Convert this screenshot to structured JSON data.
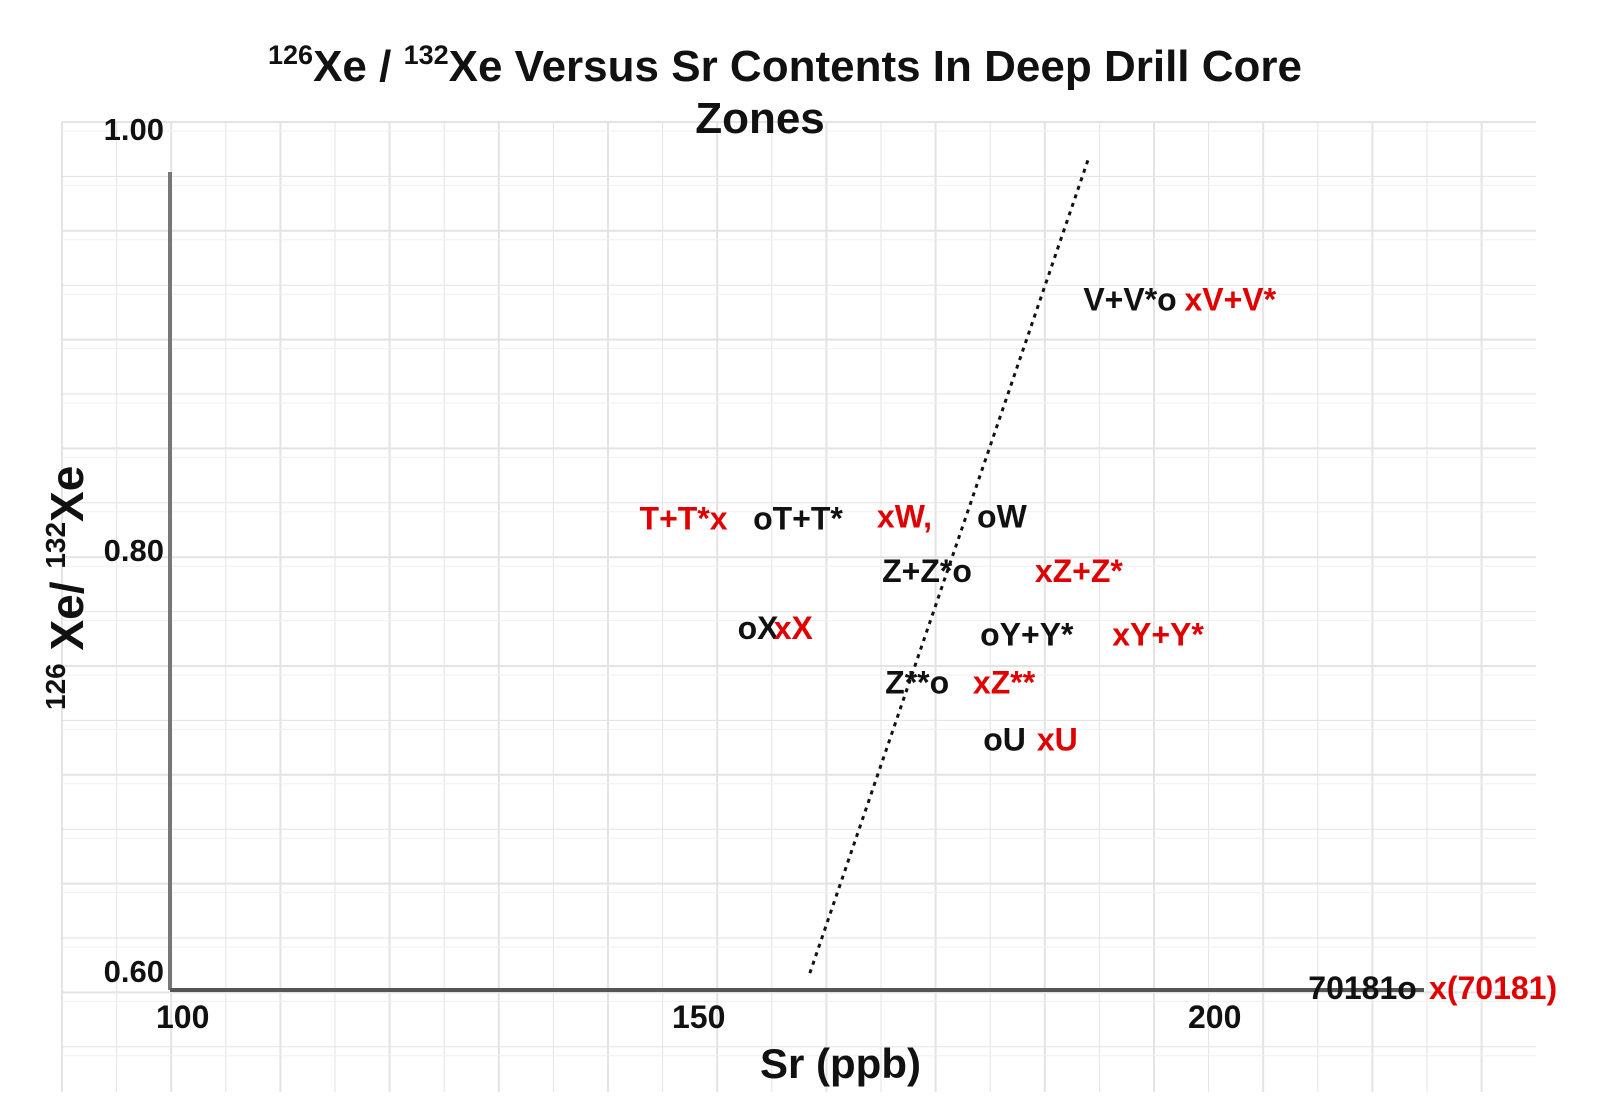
{
  "chart_data": {
    "type": "scatter",
    "title": {
      "line1_sup1": "126",
      "line1_a": "Xe / ",
      "line1_sup2": "132",
      "line1_b": "Xe Versus Sr Contents In Deep Drill Core",
      "line2": "Zones"
    },
    "ylabel": {
      "sup1": "126",
      "a": " Xe/ ",
      "sup2": "132",
      "b": "Xe"
    },
    "xlabel": "Sr (ppb)",
    "xlim": [
      100,
      222
    ],
    "ylim": [
      0.6,
      1.0
    ],
    "x_ticks": [
      {
        "value": 100,
        "label": "100"
      },
      {
        "value": 150,
        "label": "150"
      },
      {
        "value": 200,
        "label": "200"
      }
    ],
    "y_ticks": [
      {
        "value": 0.6,
        "label": "0.60"
      },
      {
        "value": 0.8,
        "label": "0.80"
      },
      {
        "value": 1.0,
        "label": "1.00"
      }
    ],
    "trend_line": {
      "style": "dotted",
      "from": {
        "x": 162,
        "y": 0.608
      },
      "to": {
        "x": 189,
        "y": 0.995
      }
    },
    "labels": [
      {
        "text": "V+V*o",
        "x": 188.5,
        "y": 0.928,
        "color": "#111111"
      },
      {
        "text": "xV+V*",
        "x": 198.3,
        "y": 0.928,
        "color": "#e00000"
      },
      {
        "text": "T+T*x",
        "x": 145.5,
        "y": 0.824,
        "color": "#e00000"
      },
      {
        "text": "oT+T*",
        "x": 156.5,
        "y": 0.824,
        "color": "#111111"
      },
      {
        "text": "xW,",
        "x": 168.5,
        "y": 0.825,
        "color": "#e00000"
      },
      {
        "text": "oW",
        "x": 178.2,
        "y": 0.825,
        "color": "#111111"
      },
      {
        "text": "Z+Z*o",
        "x": 169.0,
        "y": 0.799,
        "color": "#111111"
      },
      {
        "text": "xZ+Z*",
        "x": 183.8,
        "y": 0.799,
        "color": "#e00000"
      },
      {
        "text": "oX",
        "x": 155.0,
        "y": 0.772,
        "color": "#111111"
      },
      {
        "text": "xX",
        "x": 158.5,
        "y": 0.772,
        "color": "#e00000"
      },
      {
        "text": "oY+Y*",
        "x": 178.5,
        "y": 0.769,
        "color": "#111111"
      },
      {
        "text": "xY+Y*",
        "x": 191.3,
        "y": 0.769,
        "color": "#e00000"
      },
      {
        "text": "Z**o",
        "x": 169.3,
        "y": 0.746,
        "color": "#111111"
      },
      {
        "text": "xZ**",
        "x": 177.8,
        "y": 0.746,
        "color": "#e00000"
      },
      {
        "text": "oU",
        "x": 178.8,
        "y": 0.719,
        "color": "#111111"
      },
      {
        "text": "xU",
        "x": 184.0,
        "y": 0.719,
        "color": "#e00000"
      },
      {
        "text": "70181o",
        "x": 210.3,
        "y": 0.601,
        "color": "#111111"
      },
      {
        "text": "x(70181)",
        "x": 222.0,
        "y": 0.601,
        "color": "#e00000"
      }
    ]
  }
}
